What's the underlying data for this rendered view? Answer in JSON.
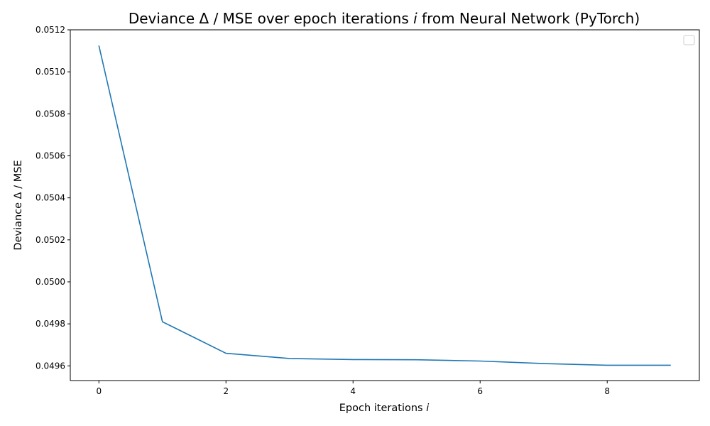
{
  "chart_data": {
    "type": "line",
    "title_parts": [
      "Deviance Δ / MSE over epoch iterations ",
      "i",
      " from Neural Network (PyTorch)"
    ],
    "xlabel_parts": [
      "Epoch iterations ",
      "i"
    ],
    "ylabel": "Deviance Δ / MSE",
    "x": [
      0,
      1,
      2,
      3,
      4,
      5,
      6,
      7,
      8,
      9
    ],
    "y": [
      0.051125,
      0.04981,
      0.04966,
      0.049635,
      0.04963,
      0.049629,
      0.049623,
      0.049611,
      0.049603,
      0.049603
    ],
    "xlim": [
      -0.45,
      9.45
    ],
    "ylim": [
      0.04953,
      0.0512
    ],
    "xticks": [
      0,
      2,
      4,
      6,
      8
    ],
    "xtick_labels": [
      "0",
      "2",
      "4",
      "6",
      "8"
    ],
    "yticks": [
      0.0496,
      0.0498,
      0.05,
      0.0502,
      0.0504,
      0.0506,
      0.0508,
      0.051,
      0.0512
    ],
    "ytick_labels": [
      "0.0496",
      "0.0498",
      "0.0500",
      "0.0502",
      "0.0504",
      "0.0506",
      "0.0508",
      "0.0510",
      "0.0512"
    ],
    "grid": false,
    "legend": "top-right",
    "line_color": "#1f77b4"
  }
}
